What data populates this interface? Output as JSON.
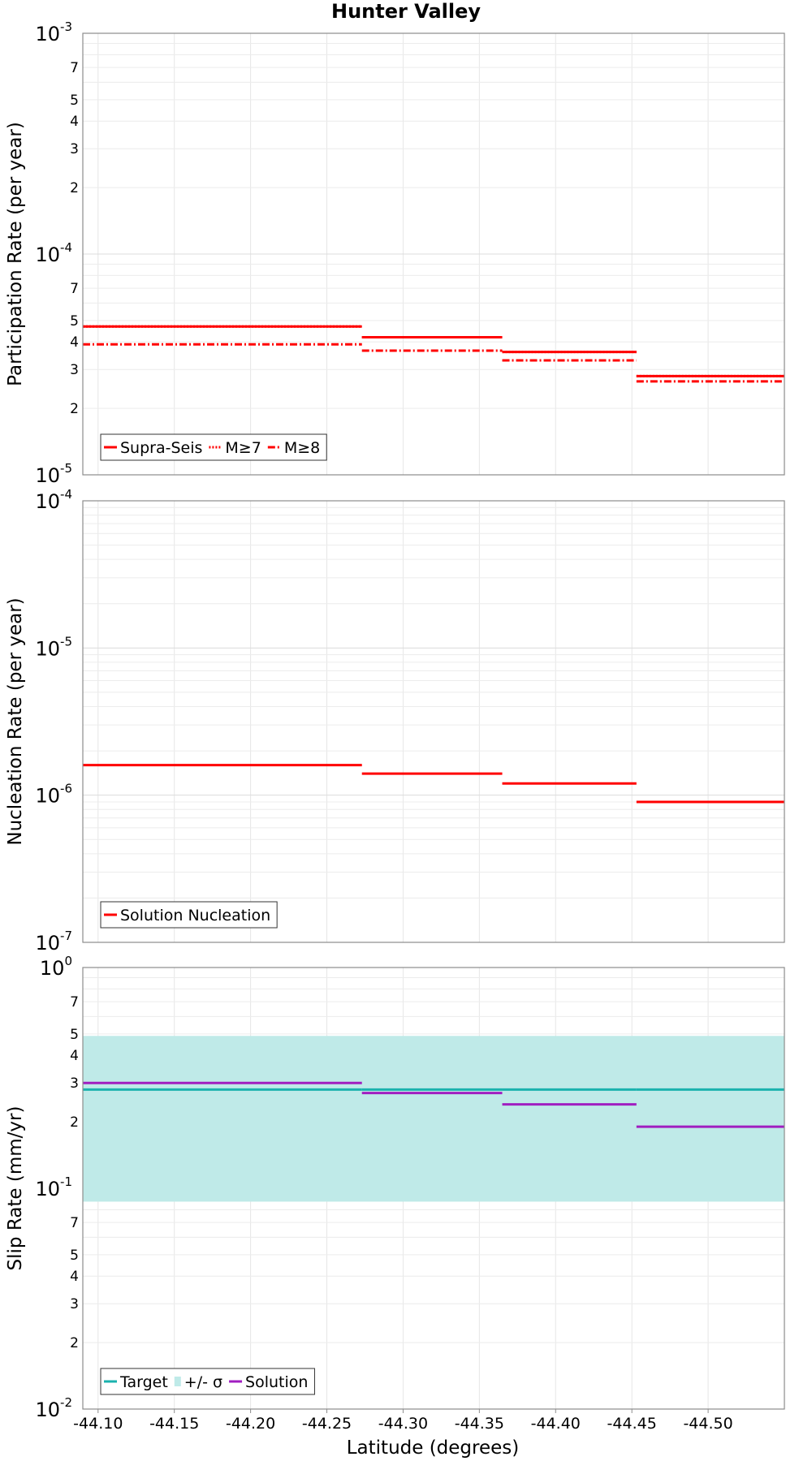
{
  "chart_data": {
    "title": "Hunter Valley",
    "xlabel": "Latitude (degrees)",
    "xlim": [
      -44.09,
      -44.55
    ],
    "x_ticks": [
      -44.1,
      -44.15,
      -44.2,
      -44.25,
      -44.3,
      -44.35,
      -44.4,
      -44.45,
      -44.5
    ],
    "x_tick_labels": [
      "-44.10",
      "-44.15",
      "-44.20",
      "-44.25",
      "-44.30",
      "-44.35",
      "-44.40",
      "-44.45",
      "-44.50"
    ],
    "segment_bounds": [
      -44.09,
      -44.273,
      -44.365,
      -44.453,
      -44.55
    ],
    "panels": [
      {
        "type": "line",
        "ylabel": "Participation Rate (per year)",
        "yscale": "log",
        "ylim": [
          1e-05,
          0.001
        ],
        "y_major_labels": [
          {
            "base": "10",
            "exp": "-5"
          },
          {
            "base": "10",
            "exp": "-4"
          },
          {
            "base": "10",
            "exp": "-3"
          }
        ],
        "y_minor_labels": [
          "2",
          "3",
          "4",
          "5",
          "7"
        ],
        "series": [
          {
            "name": "Supra-Seis",
            "style": "solid",
            "color": "#ff0000",
            "values": [
              4.7e-05,
              4.2e-05,
              3.6e-05,
              2.8e-05
            ]
          },
          {
            "name": "M≥7",
            "style": "dotted",
            "color": "#ff0000",
            "values": [
              4.7e-05,
              4.2e-05,
              3.6e-05,
              2.8e-05
            ]
          },
          {
            "name": "M≥8",
            "style": "dashdot",
            "color": "#ff0000",
            "values": [
              3.9e-05,
              3.65e-05,
              3.3e-05,
              2.65e-05
            ]
          }
        ],
        "legend": [
          "Supra-Seis",
          "M≥7",
          "M≥8"
        ]
      },
      {
        "type": "line",
        "ylabel": "Nucleation Rate (per year)",
        "yscale": "log",
        "ylim": [
          1e-07,
          0.0001
        ],
        "y_major_labels": [
          {
            "base": "10",
            "exp": "-7"
          },
          {
            "base": "10",
            "exp": "-6"
          },
          {
            "base": "10",
            "exp": "-5"
          },
          {
            "base": "10",
            "exp": "-4"
          }
        ],
        "y_minor_labels": [],
        "series": [
          {
            "name": "Solution Nucleation",
            "style": "solid",
            "color": "#ff0000",
            "values": [
              1.6e-06,
              1.4e-06,
              1.2e-06,
              9e-07
            ]
          }
        ],
        "legend": [
          "Solution Nucleation"
        ]
      },
      {
        "type": "line",
        "ylabel": "Slip Rate (mm/yr)",
        "yscale": "log",
        "ylim": [
          0.01,
          1.0
        ],
        "y_major_labels": [
          {
            "base": "10",
            "exp": "-2"
          },
          {
            "base": "10",
            "exp": "-1"
          },
          {
            "base": "10",
            "exp": "0"
          }
        ],
        "y_minor_labels": [
          "2",
          "3",
          "4",
          "5",
          "7"
        ],
        "band": {
          "name": "+/- σ",
          "color": "#bfeae8",
          "lower": 0.087,
          "upper": 0.49
        },
        "series": [
          {
            "name": "Target",
            "style": "solid",
            "color": "#1ab2ae",
            "values": [
              0.28,
              0.28,
              0.28,
              0.28
            ]
          },
          {
            "name": "Solution",
            "style": "solid",
            "color": "#a01ec0",
            "values": [
              0.3,
              0.27,
              0.24,
              0.19
            ]
          }
        ],
        "legend": [
          "Target",
          "+/- σ",
          "Solution"
        ]
      }
    ]
  }
}
